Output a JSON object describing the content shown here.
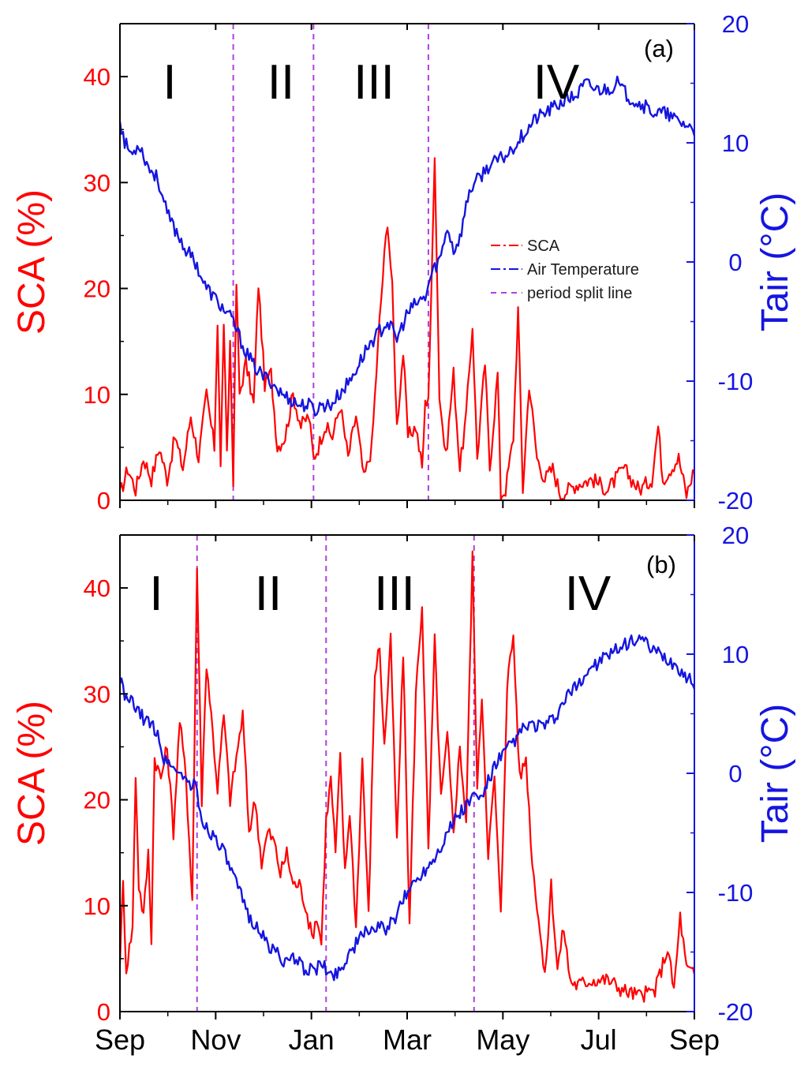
{
  "chart_data": [
    {
      "panel": "(a)",
      "type": "line",
      "x_ticks": [
        "Sep",
        "Nov",
        "Jan",
        "Mar",
        "May",
        "Jul",
        "Sep"
      ],
      "xlim_days": [
        0,
        365
      ],
      "ylabel_left": "SCA (%)",
      "ylabel_right": "Tair (°C)",
      "ylim_left": [
        0,
        45
      ],
      "ylim_right": [
        -20,
        20
      ],
      "yticks_left": [
        0,
        10,
        20,
        30,
        40
      ],
      "yticks_right": [
        -20,
        -10,
        0,
        10,
        20
      ],
      "periods": [
        "I",
        "II",
        "III",
        "IV"
      ],
      "split_lines_days": [
        72,
        123,
        196
      ],
      "legend": [
        "SCA",
        "Air Temperature",
        "period split line"
      ],
      "colors": {
        "sca": "#ff0000",
        "tair": "#1515e0",
        "split": "#b040e0"
      },
      "sca_keypoints": [
        [
          0,
          0.5
        ],
        [
          5,
          3
        ],
        [
          10,
          1
        ],
        [
          15,
          4
        ],
        [
          20,
          2
        ],
        [
          25,
          5
        ],
        [
          30,
          2
        ],
        [
          35,
          6
        ],
        [
          40,
          3
        ],
        [
          45,
          8
        ],
        [
          50,
          4
        ],
        [
          55,
          10
        ],
        [
          60,
          5
        ],
        [
          62,
          17
        ],
        [
          64,
          3
        ],
        [
          66,
          17
        ],
        [
          68,
          4
        ],
        [
          70,
          15
        ],
        [
          72,
          2
        ],
        [
          74,
          20.5
        ],
        [
          76,
          10
        ],
        [
          80,
          13
        ],
        [
          85,
          9
        ],
        [
          88,
          20.5
        ],
        [
          92,
          11
        ],
        [
          96,
          12
        ],
        [
          100,
          5
        ],
        [
          105,
          6
        ],
        [
          110,
          10
        ],
        [
          115,
          7
        ],
        [
          120,
          8
        ],
        [
          123,
          4
        ],
        [
          126,
          5
        ],
        [
          130,
          7
        ],
        [
          135,
          6
        ],
        [
          140,
          9
        ],
        [
          145,
          4
        ],
        [
          150,
          8
        ],
        [
          155,
          2
        ],
        [
          160,
          5
        ],
        [
          165,
          17
        ],
        [
          168,
          23
        ],
        [
          170,
          26.5
        ],
        [
          173,
          20
        ],
        [
          176,
          7
        ],
        [
          180,
          14
        ],
        [
          183,
          6
        ],
        [
          188,
          7
        ],
        [
          192,
          3
        ],
        [
          194,
          9
        ],
        [
          196,
          10
        ],
        [
          198,
          20
        ],
        [
          200,
          33
        ],
        [
          203,
          10
        ],
        [
          207,
          4
        ],
        [
          212,
          12
        ],
        [
          216,
          3
        ],
        [
          220,
          8
        ],
        [
          224,
          16.5
        ],
        [
          227,
          4
        ],
        [
          232,
          13
        ],
        [
          235,
          3
        ],
        [
          240,
          12
        ],
        [
          242,
          0.5
        ],
        [
          245,
          1
        ],
        [
          250,
          6
        ],
        [
          253,
          18
        ],
        [
          256,
          1
        ],
        [
          260,
          11
        ],
        [
          265,
          4
        ],
        [
          270,
          2
        ],
        [
          275,
          3
        ],
        [
          280,
          0.5
        ],
        [
          290,
          1.5
        ],
        [
          300,
          2
        ],
        [
          310,
          1
        ],
        [
          320,
          3
        ],
        [
          330,
          1
        ],
        [
          338,
          2
        ],
        [
          342,
          7
        ],
        [
          345,
          2
        ],
        [
          350,
          3
        ],
        [
          355,
          4
        ],
        [
          360,
          0.5
        ],
        [
          365,
          3
        ]
      ],
      "tair_keypoints": [
        [
          0,
          12
        ],
        [
          3,
          10
        ],
        [
          8,
          9
        ],
        [
          12,
          10
        ],
        [
          18,
          8
        ],
        [
          24,
          7
        ],
        [
          30,
          4
        ],
        [
          36,
          2.5
        ],
        [
          42,
          1
        ],
        [
          48,
          0
        ],
        [
          54,
          -2
        ],
        [
          60,
          -3
        ],
        [
          66,
          -4
        ],
        [
          72,
          -5
        ],
        [
          78,
          -7
        ],
        [
          84,
          -8.5
        ],
        [
          90,
          -9.5
        ],
        [
          96,
          -10
        ],
        [
          102,
          -11
        ],
        [
          108,
          -11.5
        ],
        [
          114,
          -12
        ],
        [
          120,
          -12
        ],
        [
          124,
          -12.5
        ],
        [
          128,
          -12
        ],
        [
          134,
          -12
        ],
        [
          140,
          -11
        ],
        [
          146,
          -10
        ],
        [
          152,
          -8.5
        ],
        [
          158,
          -7
        ],
        [
          164,
          -6
        ],
        [
          170,
          -5
        ],
        [
          176,
          -6.5
        ],
        [
          182,
          -4.5
        ],
        [
          188,
          -3.5
        ],
        [
          194,
          -3
        ],
        [
          198,
          -1
        ],
        [
          204,
          0.5
        ],
        [
          208,
          3
        ],
        [
          212,
          1
        ],
        [
          216,
          2
        ],
        [
          222,
          6
        ],
        [
          228,
          7
        ],
        [
          234,
          8
        ],
        [
          240,
          8.5
        ],
        [
          246,
          9
        ],
        [
          252,
          10
        ],
        [
          258,
          11
        ],
        [
          264,
          12
        ],
        [
          270,
          12.5
        ],
        [
          276,
          13
        ],
        [
          282,
          13.5
        ],
        [
          290,
          14
        ],
        [
          296,
          15
        ],
        [
          302,
          14.5
        ],
        [
          310,
          14.5
        ],
        [
          316,
          15
        ],
        [
          322,
          14
        ],
        [
          328,
          13.5
        ],
        [
          334,
          13
        ],
        [
          340,
          12.5
        ],
        [
          346,
          12.5
        ],
        [
          352,
          12
        ],
        [
          360,
          11.5
        ],
        [
          365,
          11
        ]
      ]
    },
    {
      "panel": "(b)",
      "type": "line",
      "x_ticks": [
        "Sep",
        "Nov",
        "Jan",
        "Mar",
        "May",
        "Jul",
        "Sep"
      ],
      "xlim_days": [
        0,
        365
      ],
      "ylabel_left": "SCA (%)",
      "ylabel_right": "Tair (°C)",
      "ylim_left": [
        0,
        45
      ],
      "ylim_right": [
        -20,
        20
      ],
      "yticks_left": [
        0,
        10,
        20,
        30,
        40
      ],
      "yticks_right": [
        -20,
        -10,
        0,
        10,
        20
      ],
      "periods": [
        "I",
        "II",
        "III",
        "IV"
      ],
      "split_lines_days": [
        49,
        131,
        225
      ],
      "legend": [],
      "colors": {
        "sca": "#ff0000",
        "tair": "#1515e0",
        "split": "#b040e0"
      },
      "sca_keypoints": [
        [
          0,
          5
        ],
        [
          2,
          12
        ],
        [
          4,
          4
        ],
        [
          8,
          8
        ],
        [
          10,
          22.5
        ],
        [
          12,
          12
        ],
        [
          15,
          9
        ],
        [
          18,
          15
        ],
        [
          20,
          7
        ],
        [
          22,
          24
        ],
        [
          26,
          22
        ],
        [
          30,
          25
        ],
        [
          34,
          17
        ],
        [
          38,
          27.5
        ],
        [
          42,
          22
        ],
        [
          46,
          10.5
        ],
        [
          49,
          42
        ],
        [
          52,
          20
        ],
        [
          55,
          33
        ],
        [
          58,
          28
        ],
        [
          62,
          21
        ],
        [
          66,
          28
        ],
        [
          70,
          20
        ],
        [
          74,
          24
        ],
        [
          78,
          28
        ],
        [
          82,
          17
        ],
        [
          86,
          20
        ],
        [
          90,
          14
        ],
        [
          94,
          17
        ],
        [
          98,
          16
        ],
        [
          102,
          13
        ],
        [
          106,
          15
        ],
        [
          110,
          12
        ],
        [
          114,
          12
        ],
        [
          118,
          10
        ],
        [
          122,
          7
        ],
        [
          125,
          9
        ],
        [
          128,
          6.5
        ],
        [
          131,
          18
        ],
        [
          134,
          22
        ],
        [
          137,
          15
        ],
        [
          140,
          24
        ],
        [
          143,
          13
        ],
        [
          146,
          19
        ],
        [
          150,
          8
        ],
        [
          154,
          24
        ],
        [
          158,
          9
        ],
        [
          162,
          32
        ],
        [
          165,
          34.5
        ],
        [
          168,
          25
        ],
        [
          172,
          35
        ],
        [
          176,
          16
        ],
        [
          180,
          34
        ],
        [
          184,
          8
        ],
        [
          188,
          30
        ],
        [
          192,
          38.5
        ],
        [
          196,
          15
        ],
        [
          200,
          35
        ],
        [
          204,
          20
        ],
        [
          208,
          26
        ],
        [
          212,
          17
        ],
        [
          216,
          25
        ],
        [
          220,
          18
        ],
        [
          224,
          43
        ],
        [
          227,
          21
        ],
        [
          230,
          30
        ],
        [
          234,
          15
        ],
        [
          238,
          22
        ],
        [
          242,
          9
        ],
        [
          246,
          31
        ],
        [
          250,
          35.5
        ],
        [
          254,
          22
        ],
        [
          258,
          24
        ],
        [
          262,
          14
        ],
        [
          266,
          9
        ],
        [
          270,
          3
        ],
        [
          274,
          12
        ],
        [
          278,
          4
        ],
        [
          282,
          8
        ],
        [
          286,
          3
        ],
        [
          290,
          2.5
        ],
        [
          300,
          3
        ],
        [
          310,
          3
        ],
        [
          320,
          2
        ],
        [
          330,
          1.5
        ],
        [
          340,
          2
        ],
        [
          348,
          6
        ],
        [
          352,
          2
        ],
        [
          356,
          9
        ],
        [
          360,
          4
        ],
        [
          365,
          3.5
        ]
      ],
      "tair_keypoints": [
        [
          0,
          8
        ],
        [
          4,
          6
        ],
        [
          8,
          6
        ],
        [
          12,
          5
        ],
        [
          16,
          4.5
        ],
        [
          20,
          4
        ],
        [
          24,
          3.5
        ],
        [
          28,
          1
        ],
        [
          32,
          1
        ],
        [
          36,
          0
        ],
        [
          40,
          0
        ],
        [
          44,
          -1
        ],
        [
          48,
          -1
        ],
        [
          52,
          -4
        ],
        [
          58,
          -5
        ],
        [
          64,
          -6
        ],
        [
          70,
          -8
        ],
        [
          76,
          -10
        ],
        [
          82,
          -12
        ],
        [
          88,
          -13
        ],
        [
          94,
          -14.5
        ],
        [
          100,
          -15
        ],
        [
          106,
          -16
        ],
        [
          112,
          -15.5
        ],
        [
          118,
          -16.5
        ],
        [
          124,
          -16.5
        ],
        [
          128,
          -16
        ],
        [
          134,
          -17
        ],
        [
          140,
          -16.5
        ],
        [
          146,
          -15
        ],
        [
          152,
          -14
        ],
        [
          158,
          -13
        ],
        [
          164,
          -13
        ],
        [
          170,
          -13
        ],
        [
          176,
          -12
        ],
        [
          182,
          -10
        ],
        [
          188,
          -9
        ],
        [
          194,
          -8
        ],
        [
          200,
          -7
        ],
        [
          206,
          -5.5
        ],
        [
          212,
          -4
        ],
        [
          218,
          -3
        ],
        [
          224,
          -2
        ],
        [
          230,
          -2
        ],
        [
          236,
          0
        ],
        [
          240,
          1
        ],
        [
          246,
          2
        ],
        [
          252,
          3
        ],
        [
          258,
          4
        ],
        [
          264,
          4
        ],
        [
          270,
          4
        ],
        [
          276,
          4.5
        ],
        [
          282,
          6
        ],
        [
          288,
          7
        ],
        [
          294,
          8
        ],
        [
          300,
          9
        ],
        [
          306,
          9.5
        ],
        [
          312,
          10
        ],
        [
          318,
          10.5
        ],
        [
          324,
          11
        ],
        [
          330,
          11.5
        ],
        [
          336,
          10.5
        ],
        [
          342,
          10
        ],
        [
          348,
          9.5
        ],
        [
          354,
          9
        ],
        [
          360,
          8
        ],
        [
          365,
          7.5
        ]
      ]
    }
  ]
}
